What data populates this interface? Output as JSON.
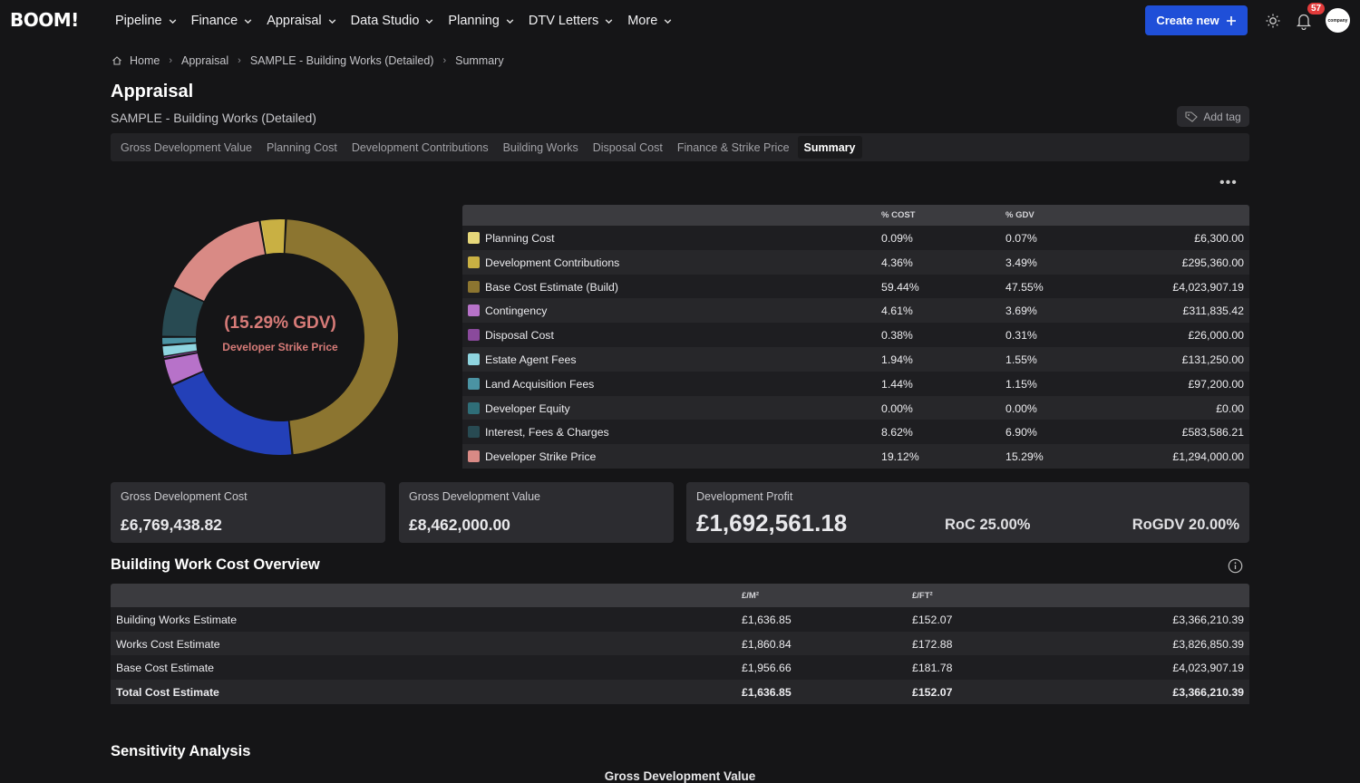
{
  "app": {
    "logo": "BOOM!"
  },
  "nav": {
    "items": [
      "Pipeline",
      "Finance",
      "Appraisal",
      "Data Studio",
      "Planning",
      "DTV Letters",
      "More"
    ],
    "create_label": "Create new",
    "notification_count": "57",
    "avatar_text": "company"
  },
  "breadcrumb": [
    "Home",
    "Appraisal",
    "SAMPLE - Building Works (Detailed)",
    "Summary"
  ],
  "page": {
    "title": "Appraisal",
    "subtitle": "SAMPLE - Building Works (Detailed)",
    "add_tag": "Add tag"
  },
  "tabs": [
    "Gross Development Value",
    "Planning Cost",
    "Development Contributions",
    "Building Works",
    "Disposal Cost",
    "Finance & Strike Price",
    "Summary"
  ],
  "active_tab": "Summary",
  "donut": {
    "center_value": "(15.29% GDV)",
    "center_label": "Developer Strike Price"
  },
  "cost_table": {
    "headers": {
      "pct_cost": "% COST",
      "pct_gdv": "% GDV"
    },
    "rows": [
      {
        "label": "Planning Cost",
        "pct_cost": "0.09%",
        "pct_gdv": "0.07%",
        "value": "£6,300.00",
        "color": "#e6d77a"
      },
      {
        "label": "Development Contributions",
        "pct_cost": "4.36%",
        "pct_gdv": "3.49%",
        "value": "£295,360.00",
        "color": "#c9b043"
      },
      {
        "label": "Base Cost Estimate (Build)",
        "pct_cost": "59.44%",
        "pct_gdv": "47.55%",
        "value": "£4,023,907.19",
        "color": "#8c7530"
      },
      {
        "label": "Contingency",
        "pct_cost": "4.61%",
        "pct_gdv": "3.69%",
        "value": "£311,835.42",
        "color": "#b772c9"
      },
      {
        "label": "Disposal Cost",
        "pct_cost": "0.38%",
        "pct_gdv": "0.31%",
        "value": "£26,000.00",
        "color": "#8a4a9c"
      },
      {
        "label": "Estate Agent Fees",
        "pct_cost": "1.94%",
        "pct_gdv": "1.55%",
        "value": "£131,250.00",
        "color": "#8fd5e0"
      },
      {
        "label": "Land Acquisition Fees",
        "pct_cost": "1.44%",
        "pct_gdv": "1.15%",
        "value": "£97,200.00",
        "color": "#4b93a3"
      },
      {
        "label": "Developer Equity",
        "pct_cost": "0.00%",
        "pct_gdv": "0.00%",
        "value": "£0.00",
        "color": "#2f6e78"
      },
      {
        "label": "Interest, Fees & Charges",
        "pct_cost": "8.62%",
        "pct_gdv": "6.90%",
        "value": "£583,586.21",
        "color": "#284a52"
      },
      {
        "label": "Developer Strike Price",
        "pct_cost": "19.12%",
        "pct_gdv": "15.29%",
        "value": "£1,294,000.00",
        "color": "#d98a85"
      }
    ]
  },
  "cards": {
    "gdc": {
      "label": "Gross Development Cost",
      "value": "£6,769,438.82"
    },
    "gdv": {
      "label": "Gross Development Value",
      "value": "£8,462,000.00"
    },
    "profit": {
      "label": "Development Profit",
      "value": "£1,692,561.18",
      "roc": "RoC 25.00%",
      "rogdv": "RoGDV 20.00%"
    }
  },
  "building": {
    "title": "Building Work Cost Overview",
    "headers": {
      "m2": "£/M²",
      "ft2": "£/FT²"
    },
    "rows": [
      {
        "label": "Building Works Estimate",
        "m2": "£1,636.85",
        "ft2": "£152.07",
        "value": "£3,366,210.39"
      },
      {
        "label": "Works Cost Estimate",
        "m2": "£1,860.84",
        "ft2": "£172.88",
        "value": "£3,826,850.39"
      },
      {
        "label": "Base Cost Estimate",
        "m2": "£1,956.66",
        "ft2": "£181.78",
        "value": "£4,023,907.19"
      },
      {
        "label": "Total Cost Estimate",
        "m2": "£1,636.85",
        "ft2": "£152.07",
        "value": "£3,366,210.39"
      }
    ]
  },
  "sensitivity": {
    "title": "Sensitivity Analysis",
    "axis_label": "Gross Development Value"
  },
  "colors": {
    "accent": "#1f4fd8",
    "badge": "#e23b3b",
    "blue_segment": "#2340b8",
    "donut_text": "#d77b78"
  }
}
